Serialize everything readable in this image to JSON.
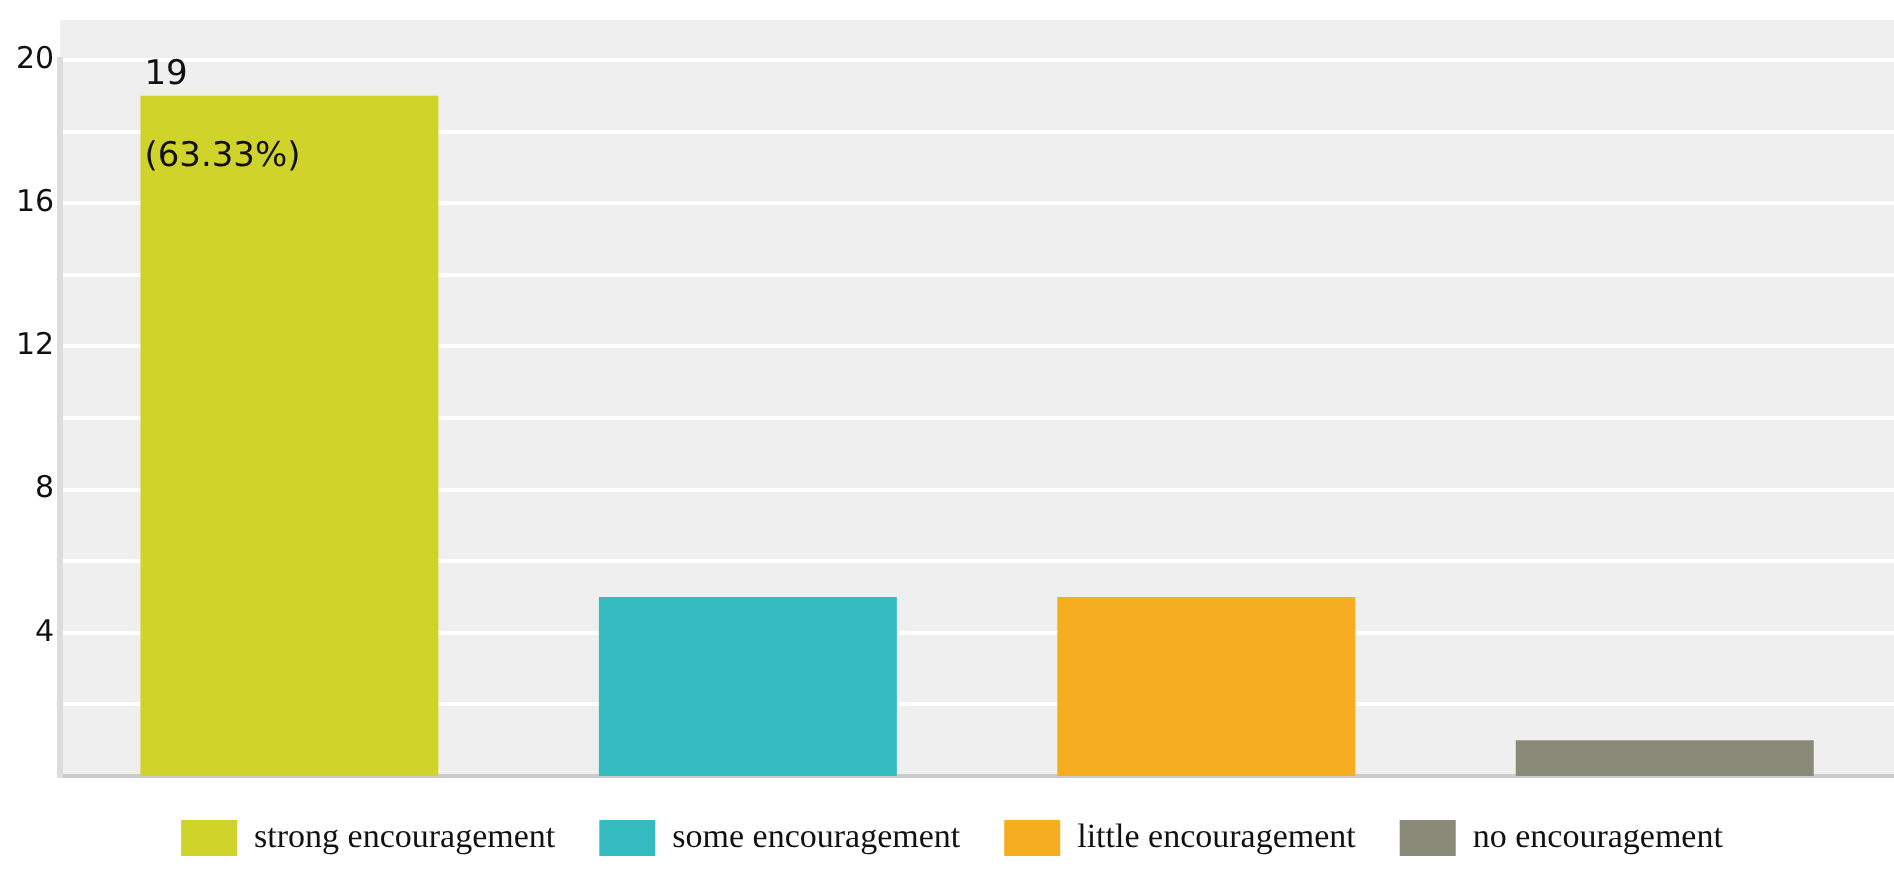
{
  "chart_data": {
    "type": "bar",
    "categories": [
      null,
      null,
      null,
      null
    ],
    "series": [
      {
        "name": "strong encouragement",
        "color": "#d0d42a",
        "values": [
          19,
          null,
          null,
          null
        ],
        "value_labels": [
          "19",
          null,
          null,
          null
        ]
      },
      {
        "name": "some encouragement",
        "color": "#34bcc0",
        "values": [
          null,
          5,
          null,
          null
        ]
      },
      {
        "name": "little encouragement",
        "color": "#f6ae20",
        "values": [
          null,
          null,
          5,
          null
        ]
      },
      {
        "name": "no encouragement",
        "color": "#898a78",
        "values": [
          null,
          null,
          null,
          1
        ]
      }
    ],
    "annotations": [
      "(63.33%)"
    ],
    "ylim": [
      0,
      20
    ],
    "yticks": [
      {
        "value": 2,
        "label": null
      },
      4,
      {
        "value": 6,
        "label": null
      },
      8,
      {
        "value": 10,
        "label": null
      },
      12,
      {
        "value": 14,
        "label": null
      },
      16,
      {
        "value": 18,
        "label": null
      },
      20
    ],
    "grid": "y",
    "legend": "bottom",
    "tick_labels": "y"
  }
}
